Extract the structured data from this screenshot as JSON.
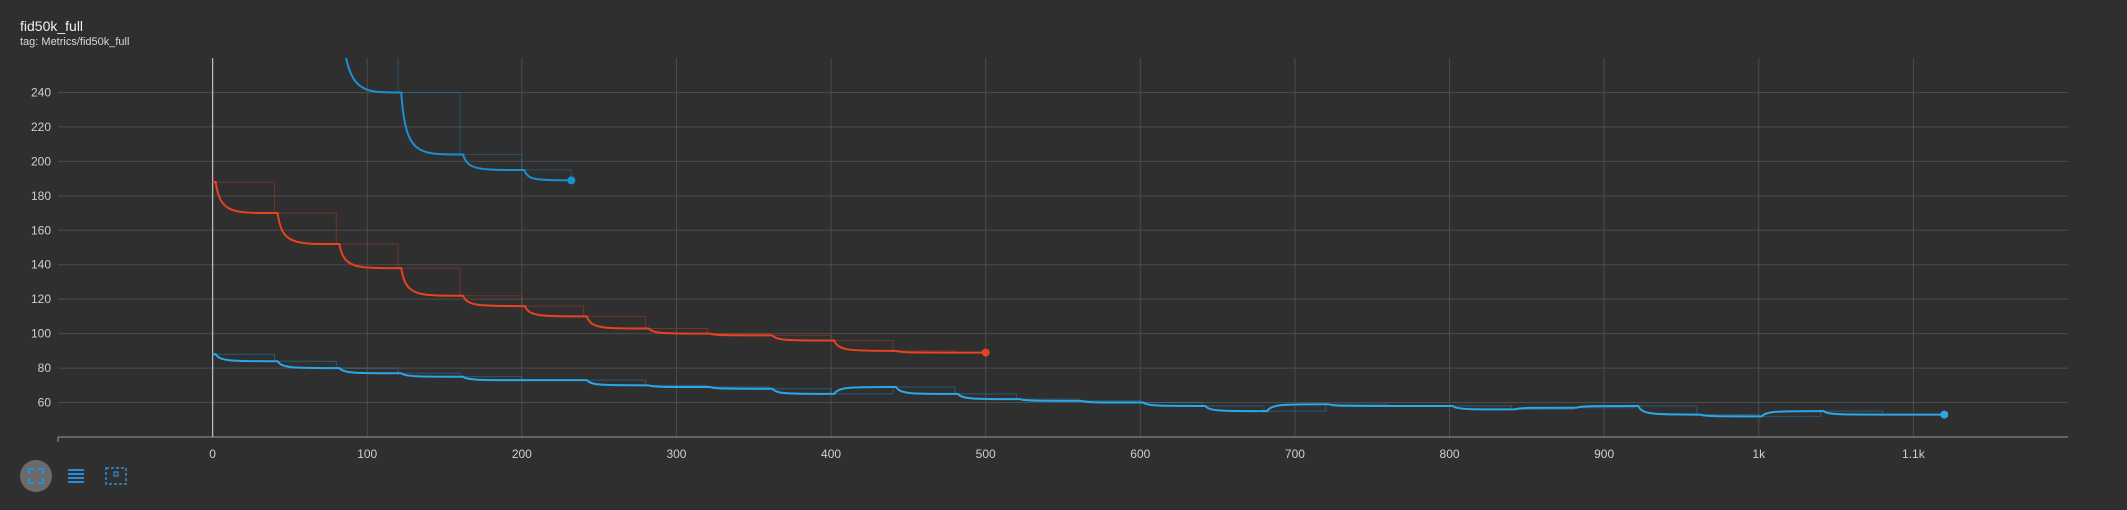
{
  "card": {
    "title": "fid50k_full",
    "subtitle": "tag: Metrics/fid50k_full"
  },
  "toolbar": {
    "buttons": [
      {
        "name": "fit-domain-button",
        "icon": "expand-icon"
      },
      {
        "name": "toggle-log-button",
        "icon": "list-lines-icon"
      },
      {
        "name": "zoom-select-button",
        "icon": "dashed-box-icon"
      }
    ]
  },
  "chart_data": {
    "type": "line",
    "title": "fid50k_full",
    "xlabel": "",
    "ylabel": "",
    "xlim": [
      -100,
      1200
    ],
    "ylim": [
      40,
      260
    ],
    "x_ticks": [
      0,
      100,
      200,
      300,
      400,
      500,
      600,
      700,
      800,
      900,
      1000,
      1100
    ],
    "x_tick_labels": [
      "0",
      "100",
      "200",
      "300",
      "400",
      "500",
      "600",
      "700",
      "800",
      "900",
      "1k",
      "1.1k"
    ],
    "y_ticks": [
      60,
      80,
      100,
      120,
      140,
      160,
      180,
      200,
      220,
      240
    ],
    "grid": true,
    "legend": "none",
    "series": [
      {
        "color": "#1a8fd1",
        "x": [
          80,
          120,
          160,
          200,
          232
        ],
        "values": [
          300,
          240,
          204,
          195,
          189
        ]
      },
      {
        "color": "#e8431f",
        "x": [
          0,
          40,
          80,
          120,
          160,
          200,
          240,
          280,
          320,
          360,
          400,
          440,
          480,
          500
        ],
        "values": [
          188,
          170,
          152,
          138,
          122,
          116,
          110,
          103,
          100,
          99,
          96,
          90,
          89,
          89
        ]
      },
      {
        "color": "#2ba7e8",
        "x": [
          0,
          40,
          80,
          120,
          160,
          200,
          240,
          280,
          320,
          360,
          400,
          440,
          480,
          520,
          560,
          600,
          640,
          680,
          720,
          760,
          800,
          840,
          880,
          920,
          960,
          1000,
          1040,
          1080,
          1120
        ],
        "values": [
          88,
          84,
          80,
          77,
          75,
          73,
          73,
          70,
          69,
          68,
          65,
          69,
          65,
          62,
          61,
          60,
          58,
          55,
          59,
          58,
          58,
          56,
          57,
          58,
          53,
          52,
          55,
          53,
          53
        ]
      }
    ]
  }
}
